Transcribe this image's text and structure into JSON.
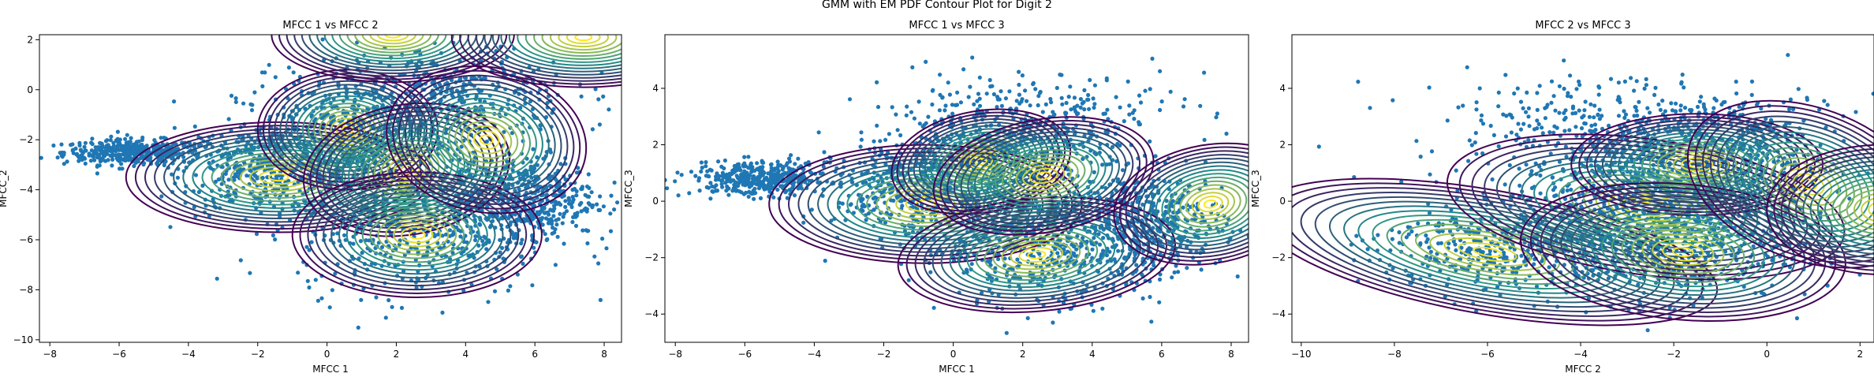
{
  "figure": {
    "suptitle": "GMM with EM PDF Contour Plot for Digit 2"
  },
  "colors": {
    "points": "#1f77b4",
    "contour_low": "#440154",
    "contour_mid": "#21918c",
    "contour_high": "#fde725"
  },
  "chart_data": [
    {
      "type": "scatter",
      "title": "MFCC 1 vs MFCC 2",
      "xlabel": "MFCC 1",
      "ylabel": "MFCC_2",
      "xlim": [
        -8.3,
        8.5
      ],
      "ylim": [
        -10.1,
        2.2
      ],
      "xticks": [
        -8,
        -6,
        -4,
        -2,
        0,
        2,
        4,
        6,
        8
      ],
      "yticks": [
        -10,
        -8,
        -6,
        -4,
        -2,
        0,
        2
      ],
      "scatter_clusters": [
        {
          "cx": -5.6,
          "cy": -2.5,
          "sx": 1.0,
          "sy": 0.25,
          "n": 420
        },
        {
          "cx": -1.8,
          "cy": -3.2,
          "sx": 1.2,
          "sy": 0.9,
          "n": 420
        },
        {
          "cx": 1.0,
          "cy": -2.0,
          "sx": 1.8,
          "sy": 1.2,
          "n": 650
        },
        {
          "cx": 2.8,
          "cy": -5.6,
          "sx": 1.8,
          "sy": 1.3,
          "n": 550
        },
        {
          "cx": 5.8,
          "cy": -4.3,
          "sx": 1.0,
          "sy": 0.8,
          "n": 450
        },
        {
          "cx": 3.5,
          "cy": -0.2,
          "sx": 1.8,
          "sy": 1.0,
          "n": 380
        }
      ],
      "components": [
        {
          "mx": -1.4,
          "my": -3.5,
          "rx": 4.4,
          "ry": 2.2,
          "angle": 0
        },
        {
          "mx": 0.6,
          "my": -1.6,
          "rx": 2.6,
          "ry": 2.4,
          "angle": 0
        },
        {
          "mx": 2.3,
          "my": -3.2,
          "rx": 3.0,
          "ry": 2.6,
          "angle": -10
        },
        {
          "mx": 2.6,
          "my": -5.8,
          "rx": 3.6,
          "ry": 2.5,
          "angle": 0
        },
        {
          "mx": 1.9,
          "my": 2.2,
          "rx": 3.5,
          "ry": 1.9,
          "angle": 0
        },
        {
          "mx": 4.6,
          "my": -2.0,
          "rx": 2.9,
          "ry": 2.9,
          "angle": 10
        },
        {
          "mx": 7.4,
          "my": 2.1,
          "rx": 3.8,
          "ry": 2.0,
          "angle": 0
        }
      ]
    },
    {
      "type": "scatter",
      "title": "MFCC 1 vs MFCC 3",
      "xlabel": "MFCC 1",
      "ylabel": "MFCC_3",
      "xlim": [
        -8.3,
        8.5
      ],
      "ylim": [
        -5.0,
        5.9
      ],
      "xticks": [
        -8,
        -6,
        -4,
        -2,
        0,
        2,
        4,
        6,
        8
      ],
      "yticks": [
        -4,
        -2,
        0,
        2,
        4
      ],
      "scatter_clusters": [
        {
          "cx": -5.5,
          "cy": 0.8,
          "sx": 1.0,
          "sy": 0.3,
          "n": 420
        },
        {
          "cx": -1.0,
          "cy": 0.3,
          "sx": 1.2,
          "sy": 0.9,
          "n": 420
        },
        {
          "cx": 1.2,
          "cy": 1.6,
          "sx": 1.6,
          "sy": 1.1,
          "n": 600
        },
        {
          "cx": 2.8,
          "cy": -1.6,
          "sx": 1.6,
          "sy": 1.1,
          "n": 550
        },
        {
          "cx": 5.8,
          "cy": -0.8,
          "sx": 1.0,
          "sy": 0.9,
          "n": 420
        },
        {
          "cx": 3.0,
          "cy": 3.2,
          "sx": 2.2,
          "sy": 0.8,
          "n": 160
        }
      ],
      "components": [
        {
          "mx": -0.8,
          "my": -0.1,
          "rx": 4.5,
          "ry": 2.1,
          "angle": 0
        },
        {
          "mx": 0.8,
          "my": 1.4,
          "rx": 2.6,
          "ry": 1.8,
          "angle": -10
        },
        {
          "mx": 2.4,
          "my": -1.9,
          "rx": 4.0,
          "ry": 2.0,
          "angle": -5
        },
        {
          "mx": 2.6,
          "my": 0.9,
          "rx": 3.2,
          "ry": 2.0,
          "angle": -10
        },
        {
          "mx": 7.4,
          "my": -0.1,
          "rx": 2.8,
          "ry": 2.1,
          "angle": -10
        }
      ]
    },
    {
      "type": "scatter",
      "title": "MFCC 2 vs MFCC 3",
      "xlabel": "MFCC 2",
      "ylabel": "MFCC_3",
      "xlim": [
        -10.2,
        2.3
      ],
      "ylim": [
        -5.0,
        5.9
      ],
      "xticks": [
        -10,
        -8,
        -6,
        -4,
        -2,
        0,
        2
      ],
      "yticks": [
        -4,
        -2,
        0,
        2,
        4
      ],
      "scatter_clusters": [
        {
          "cx": -5.8,
          "cy": -1.7,
          "sx": 1.3,
          "sy": 0.8,
          "n": 400
        },
        {
          "cx": -2.4,
          "cy": 0.4,
          "sx": 1.6,
          "sy": 1.5,
          "n": 700
        },
        {
          "cx": -1.5,
          "cy": 1.4,
          "sx": 1.4,
          "sy": 1.0,
          "n": 500
        },
        {
          "cx": -3.2,
          "cy": 3.0,
          "sx": 2.3,
          "sy": 0.8,
          "n": 230
        },
        {
          "cx": -2.3,
          "cy": -1.6,
          "sx": 1.3,
          "sy": 1.0,
          "n": 400
        }
      ],
      "components": [
        {
          "mx": -6.0,
          "my": -1.8,
          "rx": 5.0,
          "ry": 2.2,
          "angle": 10
        },
        {
          "mx": -2.6,
          "my": -0.2,
          "rx": 4.3,
          "ry": 2.4,
          "angle": 8
        },
        {
          "mx": -1.5,
          "my": 1.3,
          "rx": 2.7,
          "ry": 1.8,
          "angle": 0
        },
        {
          "mx": -1.8,
          "my": -1.8,
          "rx": 3.5,
          "ry": 2.4,
          "angle": 5
        },
        {
          "mx": 0.9,
          "my": 0.6,
          "rx": 2.7,
          "ry": 2.7,
          "angle": 20
        },
        {
          "mx": 2.5,
          "my": -0.3,
          "rx": 2.5,
          "ry": 2.3,
          "angle": 0
        }
      ]
    }
  ]
}
